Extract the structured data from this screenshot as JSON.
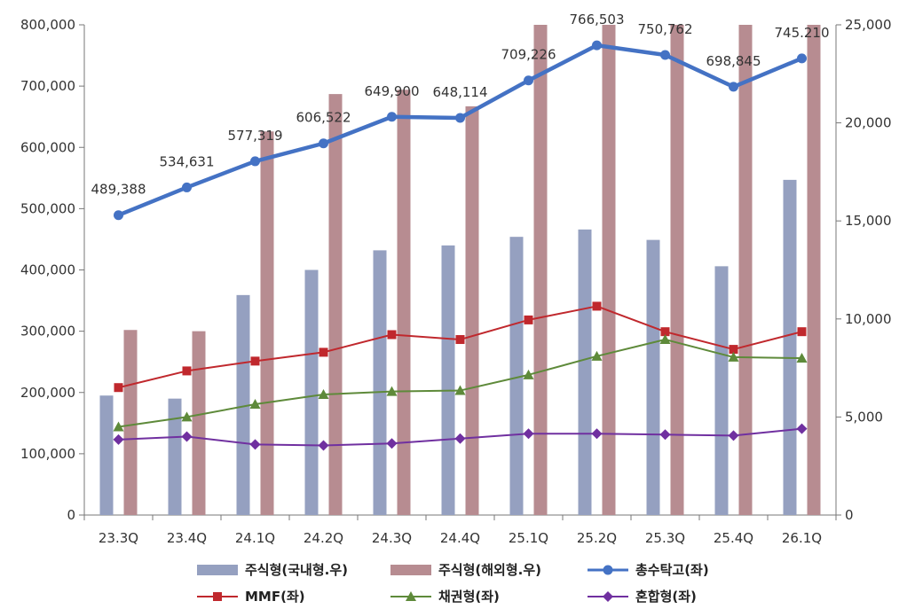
{
  "chart_data": {
    "type": "bar",
    "categories": [
      "23.3Q",
      "23.4Q",
      "24.1Q",
      "24.2Q",
      "24.3Q",
      "24.4Q",
      "25.1Q",
      "25.2Q",
      "25.3Q",
      "25.4Q",
      "26.1Q"
    ],
    "y_left": {
      "min": 0,
      "max": 800000,
      "step": 100000,
      "tick_labels": [
        "0",
        "100,000",
        "200,000",
        "300,000",
        "400,000",
        "500,000",
        "600,000",
        "700,000",
        "800,000"
      ]
    },
    "y_right": {
      "min": 0,
      "max": 25000,
      "step": 5000,
      "tick_labels": [
        "0",
        "5,000",
        "10,000",
        "15,000",
        "20,000",
        "25,000"
      ]
    },
    "grid": false,
    "legend_position": "bottom",
    "series": [
      {
        "name": "주식형(국내형.우)",
        "type": "bar",
        "axis": "left",
        "color": "#95A0C0",
        "values": [
          195000,
          190000,
          359000,
          400000,
          432000,
          440000,
          454000,
          466000,
          449000,
          406000,
          547000
        ]
      },
      {
        "name": "주식형(해외형.우)",
        "type": "bar",
        "axis": "left",
        "color": "#B78C91",
        "values": [
          302000,
          300000,
          626000,
          687000,
          694000,
          667000,
          800000,
          800000,
          800000,
          800000,
          800000
        ]
      },
      {
        "name": "총수탁고(좌)",
        "type": "line",
        "axis": "left",
        "color": "#4472C4",
        "marker": "circle",
        "values": [
          489388,
          534631,
          577319,
          606522,
          649900,
          648114,
          709226,
          766503,
          750762,
          698845,
          745210
        ],
        "labels": [
          "489,388",
          "534,631",
          "577,319",
          "606,522",
          "649,900",
          "648,114",
          "709,226",
          "766,503",
          "750,762",
          "698,845",
          "745.210"
        ]
      },
      {
        "name": "MMF(좌)",
        "type": "line",
        "axis": "right",
        "color": "#C0282D",
        "marker": "square",
        "values": [
          6500,
          7350,
          7850,
          8300,
          9200,
          8950,
          9950,
          10650,
          9350,
          8450,
          9350
        ]
      },
      {
        "name": "채권형(좌)",
        "type": "line",
        "axis": "right",
        "color": "#5E8A3A",
        "marker": "triangle",
        "values": [
          4500,
          5000,
          5650,
          6150,
          6300,
          6350,
          7150,
          8100,
          8950,
          8050,
          8000
        ]
      },
      {
        "name": "혼합형(좌)",
        "type": "line",
        "axis": "right",
        "color": "#7030A0",
        "marker": "diamond",
        "values": [
          3850,
          4000,
          3600,
          3550,
          3650,
          3900,
          4150,
          4150,
          4100,
          4050,
          4400
        ]
      }
    ]
  }
}
